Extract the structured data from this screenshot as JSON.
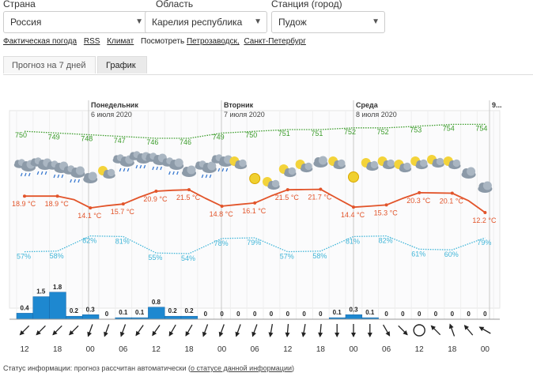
{
  "filters": {
    "country_label": "Страна",
    "country_value": "Россия",
    "region_label": "Область",
    "region_value": "Карелия республика",
    "station_label": "Станция (город)",
    "station_value": "Пудож"
  },
  "links": {
    "actual": "Фактическая погода",
    "rss": "RSS",
    "climate": "Климат",
    "see_prefix": "Посмотреть",
    "city1": "Петрозаводск,",
    "city2": "Санкт-Петербург"
  },
  "tabs": [
    "Прогноз на 7 дней",
    "График"
  ],
  "status": {
    "prefix": "Статус информации: прогноз рассчитан автоматически (",
    "link": "о статусе данной информации",
    "suffix": ")"
  },
  "chart_data": {
    "type": "line",
    "days": [
      {
        "name": "Понедельник",
        "date": "6 июля 2020"
      },
      {
        "name": "Вторник",
        "date": "7 июля 2020"
      },
      {
        "name": "Среда",
        "date": "8 июля 2020"
      },
      {
        "name": "9...",
        "date": ""
      }
    ],
    "pressure": [
      750,
      749,
      748,
      747,
      746,
      746,
      749,
      750,
      751,
      751,
      752,
      752,
      753,
      754,
      754
    ],
    "temperature": [
      {
        "i": 0,
        "label": "18.9 °C"
      },
      {
        "i": 2,
        "label": "18.9 °C"
      },
      {
        "i": 4,
        "label": "14.1 °C"
      },
      {
        "i": 6,
        "label": "15.7 °C"
      },
      {
        "i": 8,
        "label": "20.9 °C"
      },
      {
        "i": 10,
        "label": "21.5 °C"
      },
      {
        "i": 12,
        "label": "14.8 °C"
      },
      {
        "i": 14,
        "label": "16.1 °C"
      },
      {
        "i": 16,
        "label": "21.5 °C"
      },
      {
        "i": 18,
        "label": "21.7 °C"
      },
      {
        "i": 20,
        "label": "14.4 °C"
      },
      {
        "i": 22,
        "label": "15.3 °C"
      },
      {
        "i": 24,
        "label": "20.3 °C"
      },
      {
        "i": 26,
        "label": "20.1 °C"
      },
      {
        "i": 28,
        "label": "12.2 °C"
      }
    ],
    "humidity": [
      "57%",
      "58%",
      "82%",
      "81%",
      "55%",
      "54%",
      "78%",
      "79%",
      "57%",
      "58%",
      "81%",
      "82%",
      "61%",
      "60%",
      "79%"
    ],
    "precipitation_labels": [
      "0.4",
      "1.5",
      "1.8",
      "0.2",
      "0.3",
      "0",
      "0.1",
      "0.1",
      "0.8",
      "0.2",
      "0.2",
      "0",
      "0",
      "0",
      "0",
      "0",
      "0",
      "0",
      "0",
      "0.1",
      "0.3",
      "0.1",
      "0",
      "0",
      "0",
      "0",
      "0",
      "0",
      "0"
    ],
    "precipitation_mm": [
      0.4,
      1.5,
      1.8,
      0.2,
      0.3,
      0,
      0.1,
      0.1,
      0.8,
      0.2,
      0.2,
      0,
      0,
      0,
      0,
      0,
      0,
      0,
      0,
      0.1,
      0.3,
      0.1,
      0,
      0,
      0,
      0,
      0,
      0,
      0
    ],
    "weather_icons": [
      "rain-cloud-icon",
      "rain-cloud-icon",
      "rain-cloud-icon",
      "rain-cloud-icon",
      "cloud-icon",
      "partly-sunny-icon",
      "rain-cloud-icon",
      "rain-cloud-icon",
      "rain-cloud-icon",
      "rain-cloud-icon",
      "cloud-icon",
      "rain-cloud-icon",
      "rain-cloud-icon",
      "partly-sunny-icon",
      "sun-icon",
      "partly-sunny-icon",
      "partly-sunny-icon",
      "partly-sunny-icon",
      "cloud-icon",
      "partly-sunny-icon",
      "sun-icon",
      "partly-sunny-icon",
      "partly-sunny-icon",
      "partly-sunny-icon",
      "partly-sunny-icon",
      "partly-sunny-icon",
      "partly-sunny-icon",
      "cloud-icon",
      "cloud-icon"
    ],
    "wind_dir_deg": [
      225,
      225,
      225,
      225,
      200,
      200,
      200,
      215,
      215,
      210,
      210,
      200,
      200,
      200,
      200,
      190,
      185,
      190,
      185,
      180,
      180,
      180,
      150,
      135,
      90,
      315,
      340,
      320,
      300
    ],
    "time_labels": [
      "12",
      "18",
      "00",
      "06",
      "12",
      "18",
      "00",
      "06",
      "12",
      "18",
      "00",
      "06",
      "12",
      "18",
      "00"
    ],
    "colors": {
      "pressure": "#3b9c2a",
      "temperature": "#e2542a",
      "humidity": "#3fb5d8",
      "precip_bar": "#1e88d0"
    }
  }
}
